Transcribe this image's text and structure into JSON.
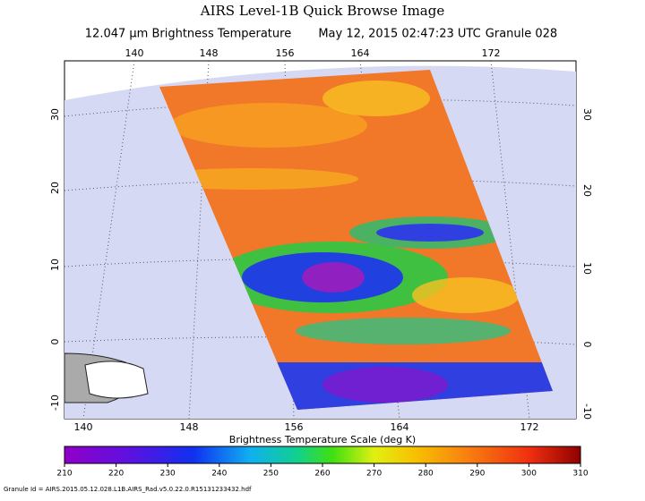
{
  "header": {
    "title": "AIRS Level-1B Quick Browse Image",
    "subtitle_parts": [
      "12.047 μm Brightness Temperature",
      "May 12, 2015 02:47:23 UTC",
      "Granule 028"
    ]
  },
  "map": {
    "lon_labels_top": [
      "140",
      "148",
      "156",
      "164",
      "172"
    ],
    "lon_labels_bottom": [
      "140",
      "148",
      "156",
      "164",
      "172"
    ],
    "lat_labels_left": [
      "30",
      "20",
      "10",
      "0",
      "-10"
    ],
    "lat_labels_right": [
      "30",
      "20",
      "10",
      "0",
      "-10"
    ]
  },
  "colorbar": {
    "label": "Brightness Temperature Scale (deg K)",
    "range": [
      210,
      310
    ],
    "ticks": [
      210,
      220,
      230,
      240,
      250,
      260,
      270,
      280,
      290,
      300,
      310
    ]
  },
  "footer": {
    "granule_id": "Granule Id = AIRS.2015.05.12.028.L1B.AIRS_Rad.v5.0.22.0.R15131233432.hdf"
  }
}
